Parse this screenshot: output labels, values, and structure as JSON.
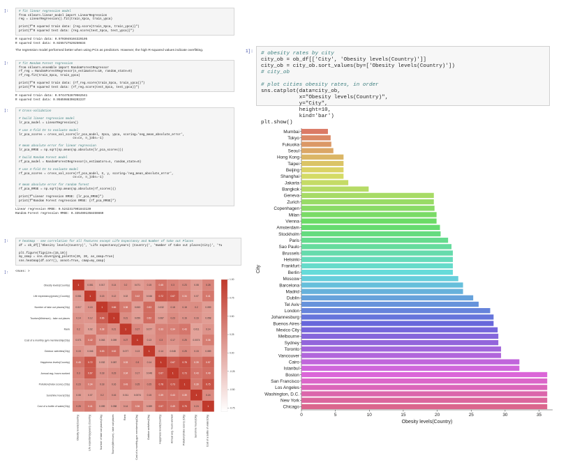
{
  "left": {
    "cell1": {
      "prompt": "]:",
      "lines": [
        "# fit linear regression model",
        "from sklearn.linear_model import LinearRegression",
        "reg = LinearRegression().fit(train_Xpca, train_ypca)",
        "",
        "print(f\"R squared train data: {reg.score(train_Xpca, train_ypca)}\")",
        "print(f\"R squared test data: {reg.score(test_Xpca, test_ypca)}\")"
      ],
      "output": [
        "R squared train data: 0.9703049104329105",
        "R squared test data: 0.9255727529250834"
      ],
      "note": "The regression model performed better when using PCs as predictors. However, the high R-squared values indicate overfitting."
    },
    "cell2": {
      "prompt": "]:",
      "lines": [
        "# fit Random Forest regression",
        "from sklearn.ensemble import RandomForestRegressor",
        "rf_reg = RandomForestRegressor(n_estimators=10, random_state=0)",
        "rf_reg.fit(train_Xpca, train_ypca)",
        "",
        "print(f\"R squared train data: {rf_reg.score(train_Xpca, train_ypca)}\")",
        "print(f\"R squared test data: {rf_reg.score(test_Xpca, test_ypca)}\")"
      ],
      "output": [
        "R squared train data: 0.9744752870562541",
        "R squared test data: 0.9585988398202237"
      ]
    },
    "cell3": {
      "prompt": "]:",
      "lines": [
        "# Cross-validation",
        "",
        "# build linear regression model",
        "lr_pca_model = LinearRegression()",
        "",
        "# use 4-fold CV to evaluate model",
        "lr_pca_scores = cross_val_score(lr_pca_model, Xpca, ypca, scoring='neg_mean_absolute_error',",
        "                              cv=cv, n_jobs=-1)",
        "",
        "# mean absolute error for linear regression",
        "lr_pca_RMSE = np.sqrt(np.mean(np.absolute(lr_pca_scores)))",
        "",
        "# build Random Forest model",
        "rf_pca_model = RandomForestRegressor(n_estimators=n, random_state=0)",
        "",
        "# use 4-fold CV to evaluate model",
        "rf_pca_scores = cross_val_score(rf_pca_model, X, y, scoring='neg_mean_absolute_error',",
        "                              cv=cv, n_jobs=-1)",
        "",
        "# mean absolute error for random forest",
        "rf_pca_RMSE = np.sqrt(np.mean(np.absolute(rf_scores)))",
        "",
        "print(f\"Linear regression RMSE: {lr_pca_RMSE}\")",
        "print(f\"Random Forest regression RMSE: {rf_pca_RMSE}\")"
      ],
      "output": [
        "Linear regression RMSE: 0.5242317001843139",
        "Random Forest regression RMSE: 0.3354901358459869"
      ]
    },
    "cell4": {
      "prompt": "]:",
      "lines": [
        "# heatmap - see correlation for all features except Life Expectancy and Number of take out Places",
        "df = ob_df[['Obesity levels(Country)', 'Life expectancy(years) (Country)', 'Number of take out places(City)', 'Tu",
        "",
        "plt.figure(figsize=(15,10))",
        "my_cmap = sns.diverging_palette(20, 20, as_cmap=True)",
        "sns.heatmap(df.corr(), annot=True, cmap=my_cmap)"
      ],
      "out_prompt": "]:",
      "out_text": "<Axes: >"
    }
  },
  "heatmap": {
    "labels": [
      "Obesity levels(Country)",
      "Life expectancy(years) (Country)",
      "Number of take out places(City)",
      "Tourism(Minimum) - take out places",
      "Rank",
      "Cost of a monthly gym membership(City)",
      "Outdoor activities(City)",
      "Happiness levels(Country)",
      "Annual avg. hours worked",
      "Pollution(Index score) (City)",
      "Sunshine hours(City)",
      "Cost of a bottle of water(City)"
    ],
    "values": [
      [
        1,
        0.081,
        0.017,
        0.14,
        0.2,
        0.071,
        0.15,
        0.45,
        0.3,
        0.23,
        0.08,
        0.28
      ],
      [
        0.081,
        1,
        0.15,
        0.12,
        0.02,
        0.42,
        0.046,
        0.72,
        0.67,
        0.34,
        0.07,
        0.41
      ],
      [
        0.017,
        0.15,
        1,
        0.66,
        0.38,
        0.063,
        0.53,
        0.032,
        0.18,
        0.18,
        0.2,
        0.059
      ],
      [
        0.14,
        0.12,
        0.66,
        1,
        0.21,
        0.059,
        0.52,
        0.087,
        0.23,
        0.16,
        0.16,
        0.058
      ],
      [
        0.2,
        0.02,
        0.38,
        0.21,
        1,
        0.27,
        0.077,
        0.33,
        0.34,
        0.43,
        0.011,
        0.14
      ],
      [
        0.071,
        0.42,
        0.063,
        0.059,
        0.27,
        1,
        0.13,
        0.3,
        0.17,
        0.25,
        0.0074,
        0.36
      ],
      [
        0.15,
        0.046,
        0.53,
        0.52,
        0.077,
        0.13,
        1,
        0.14,
        0.048,
        0.25,
        0.15,
        0.089
      ],
      [
        0.45,
        0.72,
        0.032,
        0.087,
        0.33,
        0.3,
        0.14,
        1,
        0.67,
        0.78,
        0.39,
        0.57
      ],
      [
        0.3,
        0.67,
        0.18,
        0.23,
        0.34,
        0.17,
        0.048,
        0.67,
        1,
        0.73,
        0.43,
        0.49
      ],
      [
        0.23,
        0.34,
        0.18,
        0.16,
        0.43,
        0.25,
        0.25,
        0.78,
        0.73,
        1,
        0.39,
        0.75
      ],
      [
        0.08,
        0.07,
        0.2,
        0.16,
        0.011,
        0.0074,
        0.15,
        0.39,
        0.43,
        0.39,
        1,
        0.24
      ],
      [
        0.28,
        0.41,
        0.059,
        0.058,
        0.14,
        0.36,
        0.089,
        0.57,
        0.49,
        0.75,
        0.24,
        1
      ]
    ],
    "colorbar_ticks": [
      "1.00",
      "0.75",
      "0.50",
      "0.25",
      "0.00",
      "-0.25",
      "-0.50",
      "-0.75"
    ],
    "low_color": "#ffffff",
    "high_color": "#c0392b"
  },
  "right": {
    "prompt": "1]:",
    "code_lines": [
      "# obesity rates by city",
      "city_ob = ob_df[['City', 'Obesity levels(Country)']]",
      "city_ob = city_ob.sort_values(by=['Obesity levels(Country)'])",
      "# city_ob",
      "",
      "# plot cities obesity rates, in order",
      "sns.catplot(data=city_ob,",
      "            x=\"Obesity levels(Country)\",",
      "            y=\"City\",",
      "            height=10,",
      "            kind='bar')",
      "plt.show()"
    ]
  },
  "chart_data": {
    "type": "bar",
    "orientation": "horizontal",
    "categories": [
      "Mumbai",
      "Tokyo",
      "Fukuoka",
      "Seoul",
      "Hong Kong",
      "Taipei",
      "Beijing",
      "Shanghai",
      "Jakarta",
      "Bangkok",
      "Geneva",
      "Zurich",
      "Copenhagen",
      "Milan",
      "Vienna",
      "Amsterdam",
      "Stockholm",
      "Paris",
      "Sao Paulo",
      "Brussels",
      "Helsinki",
      "Frankfurt",
      "Berlin",
      "Moscow",
      "Barcelona",
      "Madrid",
      "Dublin",
      "Tel Aviv",
      "London",
      "Johannesburg",
      "Buenos Aires",
      "Mexico City",
      "Melbourne",
      "Sydney",
      "Toronto",
      "Vancouver",
      "Cairo",
      "Istanbul",
      "Boston",
      "San Francisco",
      "Los Angeles",
      "Washington, D.C.",
      "New York",
      "Chicago"
    ],
    "values": [
      3.9,
      4.3,
      4.4,
      4.7,
      6.2,
      6.2,
      6.2,
      6.2,
      6.9,
      9.9,
      19.5,
      19.5,
      19.6,
      19.9,
      19.9,
      20.4,
      20.5,
      21.6,
      22.1,
      22.3,
      22.3,
      22.3,
      22.3,
      23.1,
      23.8,
      23.8,
      25.3,
      26.1,
      27.8,
      28.3,
      28.3,
      28.9,
      29.0,
      29.0,
      29.4,
      29.4,
      32.1,
      32.1,
      36.2,
      36.2,
      36.2,
      36.2,
      36.2,
      36.2
    ],
    "xlabel": "Obesity levels(Country)",
    "ylabel": "City",
    "xlim": [
      0,
      37
    ],
    "xticks": [
      0,
      5,
      10,
      15,
      20,
      25,
      30,
      35
    ],
    "grid": false
  }
}
